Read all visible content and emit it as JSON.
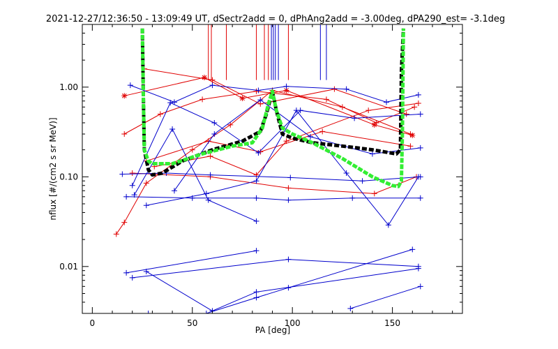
{
  "chart_data": {
    "type": "line",
    "title": "2021-12-27/12:36:50 - 13:09:49 UT, dSectr2add = 0, dPhAng2add = -3.00deg, dPA290_est=  -3.1deg",
    "xlabel": "PA [deg]",
    "ylabel": "nflux [#/(cm2 s sr MeV)]",
    "xlim": [
      -5,
      185
    ],
    "ylim": [
      0.003,
      5
    ],
    "y_scale": "log",
    "x_ticks": [
      0,
      50,
      100,
      150
    ],
    "x_tick_labels": [
      "0",
      "50",
      "100",
      "150"
    ],
    "y_ticks": [
      0.01,
      0.1,
      1.0
    ],
    "y_tick_labels": [
      "0.01",
      "0.10",
      "1.00"
    ],
    "grid": false,
    "colors": {
      "red": "#e00000",
      "blue": "#0000cc",
      "black": "#000000",
      "green": "#33ee33"
    },
    "series": [
      {
        "color": "red",
        "marker": "plus",
        "points": [
          [
            12,
            0.023
          ],
          [
            16,
            0.031
          ],
          [
            27,
            0.085
          ],
          [
            50,
            0.2
          ],
          [
            69,
            0.38
          ],
          [
            90,
            0.92
          ],
          [
            125,
            0.6
          ],
          [
            159,
            0.3
          ]
        ]
      },
      {
        "color": "red",
        "marker": "asterisk",
        "points": [
          [
            16,
            0.8
          ],
          [
            56,
            1.28
          ],
          [
            75,
            0.75
          ],
          [
            97,
            0.92
          ],
          [
            141,
            0.38
          ],
          [
            160,
            0.29
          ]
        ]
      },
      {
        "color": "red",
        "marker": "plus",
        "points": [
          [
            16,
            0.3
          ],
          [
            34,
            0.5
          ],
          [
            55,
            0.73
          ],
          [
            82,
            0.9
          ],
          [
            117,
            0.73
          ],
          [
            142,
            0.4
          ],
          [
            161,
            0.6
          ]
        ]
      },
      {
        "color": "red",
        "marker": "plus",
        "points": [
          [
            26,
            1.6
          ],
          [
            60,
            1.2
          ],
          [
            84,
            0.65
          ],
          [
            121,
            0.95
          ],
          [
            157,
            0.5
          ]
        ]
      },
      {
        "color": "red",
        "marker": "plus",
        "points": [
          [
            27,
            0.15
          ],
          [
            58,
            0.25
          ],
          [
            84,
            0.19
          ],
          [
            115,
            0.32
          ],
          [
            159,
            0.22
          ]
        ]
      },
      {
        "color": "red",
        "marker": "plus",
        "points": [
          [
            31,
            0.13
          ],
          [
            59,
            0.17
          ],
          [
            82,
            0.105
          ],
          [
            97,
            0.25
          ],
          [
            138,
            0.55
          ],
          [
            163,
            0.66
          ]
        ]
      },
      {
        "color": "red",
        "marker": "plus",
        "points": [
          [
            20,
            0.11
          ],
          [
            59,
            0.1
          ],
          [
            98,
            0.075
          ],
          [
            141,
            0.065
          ],
          [
            162,
            0.1
          ]
        ]
      },
      {
        "color": "blue",
        "marker": "plus",
        "points": [
          [
            19,
            1.05
          ],
          [
            41,
            0.68
          ],
          [
            60,
            1.05
          ],
          [
            83,
            0.92
          ],
          [
            97,
            1.02
          ],
          [
            127,
            0.95
          ],
          [
            147,
            0.68
          ],
          [
            163,
            0.82
          ]
        ]
      },
      {
        "color": "blue",
        "marker": "plus",
        "points": [
          [
            15,
            0.107
          ],
          [
            37,
            0.11
          ],
          [
            59,
            0.105
          ],
          [
            99,
            0.098
          ],
          [
            135,
            0.09
          ],
          [
            164,
            0.1
          ]
        ]
      },
      {
        "color": "blue",
        "marker": "plus",
        "points": [
          [
            17,
            0.06
          ],
          [
            50,
            0.058
          ],
          [
            82,
            0.058
          ],
          [
            98,
            0.055
          ],
          [
            130,
            0.058
          ],
          [
            164,
            0.058
          ]
        ]
      },
      {
        "color": "blue",
        "marker": "plus",
        "points": [
          [
            27,
            0.048
          ],
          [
            57,
            0.065
          ],
          [
            82,
            0.09
          ],
          [
            102,
            0.55
          ],
          [
            127,
            0.11
          ],
          [
            148,
            0.029
          ],
          [
            163,
            0.1
          ]
        ]
      },
      {
        "color": "blue",
        "marker": "plus",
        "points": [
          [
            21,
            0.063
          ],
          [
            40,
            0.34
          ],
          [
            58,
            0.055
          ],
          [
            82,
            0.032
          ]
        ]
      },
      {
        "color": "blue",
        "marker": "plus",
        "points": [
          [
            20,
            0.08
          ],
          [
            39,
            0.67
          ],
          [
            61,
            0.4
          ],
          [
            83,
            0.185
          ],
          [
            104,
            0.55
          ],
          [
            131,
            0.45
          ],
          [
            164,
            0.5
          ]
        ]
      },
      {
        "color": "blue",
        "marker": "plus",
        "points": [
          [
            17,
            0.0085
          ],
          [
            82,
            0.015
          ]
        ]
      },
      {
        "color": "blue",
        "marker": "plus",
        "points": [
          [
            20,
            0.0075
          ],
          [
            98,
            0.012
          ],
          [
            163,
            0.01
          ]
        ]
      },
      {
        "color": "blue",
        "marker": "plus",
        "points": [
          [
            28,
            0.003
          ],
          [
            57,
            0.003
          ],
          [
            82,
            0.0045
          ],
          [
            98,
            0.0058
          ],
          [
            160,
            0.0155
          ]
        ]
      },
      {
        "color": "blue",
        "marker": "plus",
        "points": [
          [
            27,
            0.0088
          ],
          [
            60,
            0.0032
          ],
          [
            82,
            0.0052
          ],
          [
            163,
            0.0095
          ]
        ]
      },
      {
        "color": "blue",
        "marker": "plus",
        "points": [
          [
            129,
            0.0034
          ],
          [
            164,
            0.006
          ]
        ]
      },
      {
        "color": "blue",
        "marker": "plus",
        "points": [
          [
            41,
            0.07
          ],
          [
            61,
            0.3
          ],
          [
            84,
            0.72
          ],
          [
            109,
            0.28
          ],
          [
            140,
            0.18
          ],
          [
            164,
            0.21
          ]
        ]
      }
    ],
    "black_curve": [
      [
        25,
        4.5
      ],
      [
        25.5,
        0.8
      ],
      [
        26,
        0.2
      ],
      [
        28,
        0.12
      ],
      [
        30,
        0.105
      ],
      [
        35,
        0.11
      ],
      [
        45,
        0.15
      ],
      [
        60,
        0.2
      ],
      [
        75,
        0.25
      ],
      [
        84,
        0.32
      ],
      [
        87,
        0.5
      ],
      [
        90,
        0.9
      ],
      [
        92,
        0.55
      ],
      [
        95,
        0.3
      ],
      [
        100,
        0.27
      ],
      [
        110,
        0.24
      ],
      [
        125,
        0.22
      ],
      [
        140,
        0.2
      ],
      [
        152,
        0.18
      ],
      [
        154,
        0.2
      ],
      [
        154.5,
        1.5
      ],
      [
        155.5,
        4.5
      ]
    ],
    "green_curve": [
      [
        25,
        4.5
      ],
      [
        25.5,
        0.8
      ],
      [
        26,
        0.2
      ],
      [
        28,
        0.15
      ],
      [
        30,
        0.14
      ],
      [
        40,
        0.14
      ],
      [
        55,
        0.18
      ],
      [
        70,
        0.22
      ],
      [
        80,
        0.24
      ],
      [
        85,
        0.35
      ],
      [
        88,
        0.65
      ],
      [
        90,
        0.9
      ],
      [
        92,
        0.55
      ],
      [
        95,
        0.35
      ],
      [
        100,
        0.3
      ],
      [
        110,
        0.24
      ],
      [
        125,
        0.16
      ],
      [
        140,
        0.1
      ],
      [
        150,
        0.08
      ],
      [
        153,
        0.078
      ],
      [
        154.5,
        0.09
      ],
      [
        155,
        0.3
      ],
      [
        155.5,
        4.5
      ]
    ],
    "vertical_lines": [
      {
        "x": 58,
        "color": "red"
      },
      {
        "x": 59.5,
        "color": "red"
      },
      {
        "x": 67,
        "color": "red"
      },
      {
        "x": 82,
        "color": "red"
      },
      {
        "x": 86,
        "color": "red"
      },
      {
        "x": 88,
        "color": "red"
      },
      {
        "x": 89.5,
        "color": "blue"
      },
      {
        "x": 90.5,
        "color": "blue"
      },
      {
        "x": 91.5,
        "color": "blue"
      },
      {
        "x": 93,
        "color": "blue"
      },
      {
        "x": 98,
        "color": "red"
      },
      {
        "x": 114,
        "color": "blue"
      },
      {
        "x": 117,
        "color": "blue"
      }
    ]
  }
}
